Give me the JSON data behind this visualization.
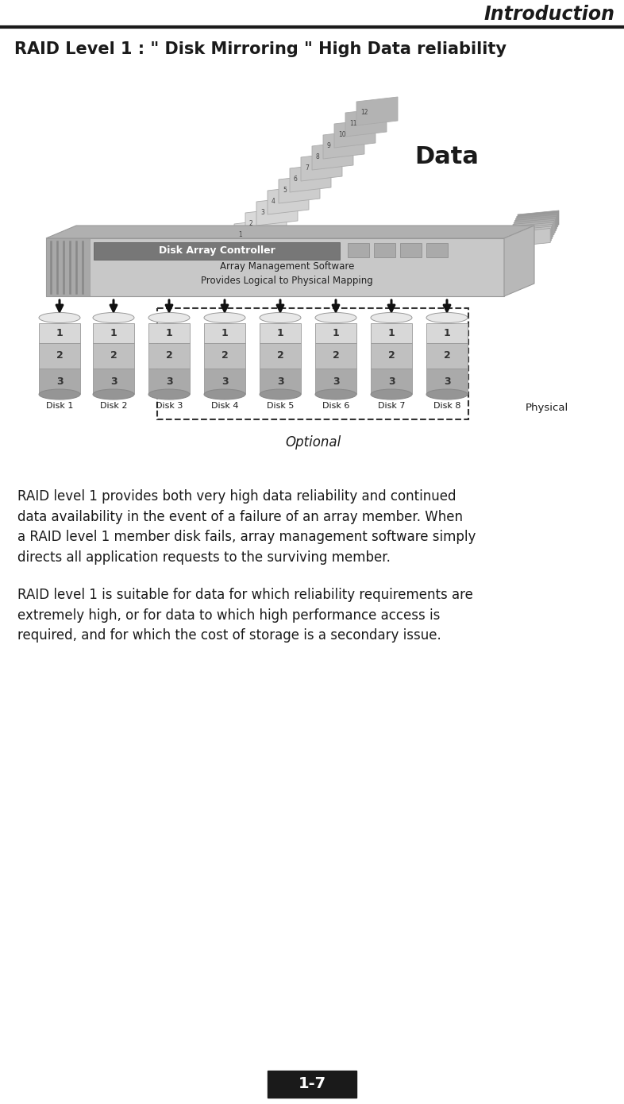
{
  "title_header": "Introduction",
  "slide_title": "RAID Level 1 : \" Disk Mirroring \" High Data reliability",
  "diagram_title": "Data",
  "controller_label": "Disk Array Controller",
  "software_label": "Array Management Software\nProvides Logical to Physical Mapping",
  "disk_labels": [
    "Disk 1",
    "Disk 2",
    "Disk 3",
    "Disk 4",
    "Disk 5",
    "Disk 6",
    "Disk 7",
    "Disk 8"
  ],
  "physical_label": "Physical",
  "optional_label": "Optional",
  "para1": "RAID level 1 provides both very high data reliability and continued\ndata availability in the event of a failure of an array member. When\na RAID level 1 member disk fails, array management software simply\ndirects all application requests to the surviving member.",
  "para2": "RAID level 1 is suitable for data for which reliability requirements are\nextremely high, or for data to which high performance access is\nrequired, and for which the cost of storage is a secondary issue.",
  "page_number": "1-7",
  "bg_color": "#ffffff"
}
